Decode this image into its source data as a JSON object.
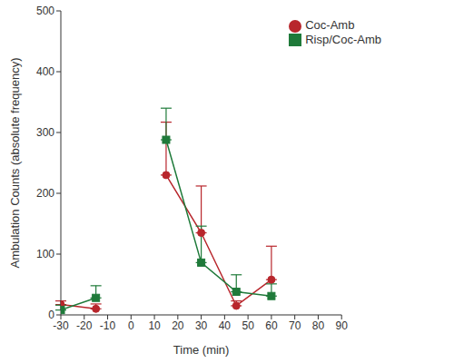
{
  "chart_data": {
    "type": "line",
    "x_label": "Time (min)",
    "y_label": "Ambulation Counts (absolute frequency)",
    "x": [
      -30,
      -15,
      0,
      15,
      30,
      45,
      60
    ],
    "series": [
      {
        "name": "Coc-Amb",
        "color": "#b8262c",
        "marker": "circle",
        "values": [
          17,
          10,
          null,
          230,
          135,
          15,
          58
        ],
        "error": [
          6,
          8,
          null,
          87,
          77,
          8,
          55
        ]
      },
      {
        "name": "Risp/Coc-Amb",
        "color": "#1f7a3a",
        "marker": "square",
        "values": [
          8,
          28,
          null,
          288,
          86,
          38,
          31
        ],
        "error": [
          8,
          20,
          null,
          52,
          60,
          28,
          20
        ]
      }
    ],
    "xlim": [
      -30,
      90
    ],
    "xticks": [
      -30,
      -20,
      -10,
      0,
      10,
      20,
      30,
      40,
      50,
      60,
      70,
      80,
      90
    ],
    "ylim": [
      0,
      500
    ],
    "yticks": [
      0,
      100,
      200,
      300,
      400,
      500
    ],
    "grid": false,
    "legend": "upper right"
  }
}
